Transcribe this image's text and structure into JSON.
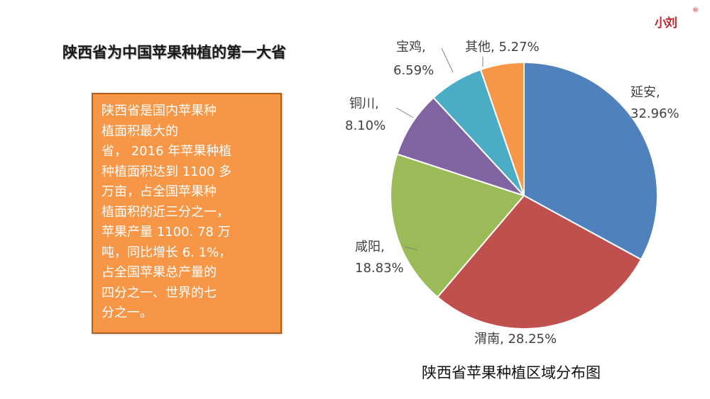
{
  "logo": {
    "text": "小刘",
    "registered": "®"
  },
  "slide": {
    "title": "陕西省为中国苹果种植的第一大省",
    "info_text": "陕西省是国内苹果种\n植面积最大的\n省， 2016 年苹果种植\n种植面积达到 1100 多\n万亩，占全国苹果种\n植面积的近三分之一，\n苹果产量 1100. 78 万\n吨，同比增长 6. 1%，\n占全国苹果总产量的\n四分之一、世界的七\n分之一。",
    "caption": "陕西省苹果种植区域分布图"
  },
  "colors": {
    "info_box_fill": "#f79646",
    "info_box_border": "#b25d1a",
    "brand": "#c2272d"
  },
  "chart_data": {
    "type": "pie",
    "title": "陕西省苹果种植区域分布图",
    "slices": [
      {
        "label": "延安",
        "value": 32.96,
        "display": "32.96%",
        "color": "#4f81bd"
      },
      {
        "label": "渭南",
        "value": 28.25,
        "display": "28.25%",
        "color": "#c0504d"
      },
      {
        "label": "咸阳",
        "value": 18.83,
        "display": "18.83%",
        "color": "#9bbb59"
      },
      {
        "label": "铜川",
        "value": 8.1,
        "display": "8.10%",
        "color": "#8064a2"
      },
      {
        "label": "宝鸡",
        "value": 6.59,
        "display": "6.59%",
        "color": "#4bacc6"
      },
      {
        "label": "其他",
        "value": 5.27,
        "display": "5.27%",
        "color": "#f79646"
      }
    ],
    "legend": "none"
  }
}
